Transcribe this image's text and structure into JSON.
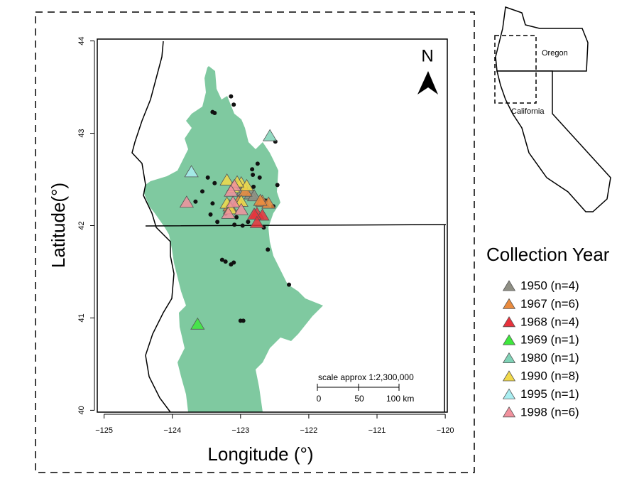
{
  "chart_data": {
    "type": "scatter",
    "xlabel": "Longitude (°)",
    "ylabel": "Latitude(°)",
    "xlim": [
      -125.1,
      -119.97
    ],
    "ylim": [
      39.98,
      44.02
    ],
    "xticks": [
      {
        "value": -125,
        "label": "−125"
      },
      {
        "value": -124,
        "label": "−124"
      },
      {
        "value": -123,
        "label": "−123"
      },
      {
        "value": -122,
        "label": "−122"
      },
      {
        "value": -121,
        "label": "−121"
      },
      {
        "value": -120,
        "label": "−120"
      }
    ],
    "yticks": [
      40,
      41,
      42,
      43,
      44
    ],
    "legend_title": "Collection Year",
    "north_label": "N",
    "scale_label": "scale approx 1:2,300,000",
    "scale_ticks": [
      "0",
      "50",
      "100 km"
    ],
    "inset_labels": [
      "Oregon",
      "California"
    ],
    "sites": {
      "color": "#111111",
      "x": [
        -123.14,
        -123.1,
        -123.41,
        -123.38,
        -122.49,
        -122.75,
        -122.83,
        -123.48,
        -123.38,
        -123.56,
        -123.66,
        -122.82,
        -122.46,
        -122.72,
        -123.44,
        -123.22,
        -123.34,
        -123.09,
        -122.97,
        -122.89,
        -122.66,
        -122.6,
        -123.27,
        -123.22,
        -123.14,
        -123.1,
        -123.0,
        -122.96,
        -122.29,
        -122.81,
        -123.41,
        -122.52,
        -123.06,
        -122.63
      ],
      "y": [
        43.4,
        43.31,
        43.23,
        43.22,
        42.91,
        42.67,
        42.61,
        42.52,
        42.46,
        42.37,
        42.26,
        42.55,
        42.44,
        42.52,
        42.12,
        42.13,
        42.04,
        42.01,
        42.0,
        42.04,
        41.98,
        41.74,
        41.63,
        41.61,
        41.58,
        41.6,
        40.97,
        40.97,
        41.36,
        42.42,
        42.24,
        42.21,
        42.09,
        42.27
      ]
    },
    "series": [
      {
        "name": "1950 (n=4)",
        "color": "#8f8f84",
        "x": [
          -122.96,
          -122.85,
          -122.8,
          -123.06
        ],
        "values": [
          42.38,
          42.34,
          42.32,
          42.43
        ]
      },
      {
        "name": "1967 (n=6)",
        "color": "#ea8b3e",
        "x": [
          -122.68,
          -122.59,
          -122.71,
          -123.03,
          -123.16,
          -122.93
        ],
        "values": [
          42.26,
          42.24,
          42.27,
          42.26,
          42.21,
          42.37
        ]
      },
      {
        "name": "1968 (n=4)",
        "color": "#e8323c",
        "x": [
          -122.76,
          -122.68,
          -122.8,
          -122.76
        ],
        "values": [
          42.13,
          42.11,
          42.12,
          42.03
        ]
      },
      {
        "name": "1969 (n=1)",
        "color": "#3ee83c",
        "x": [
          -123.63
        ],
        "values": [
          40.93
        ]
      },
      {
        "name": "1980 (n=1)",
        "color": "#7fd2b6",
        "x": [
          -122.57
        ],
        "values": [
          42.97
        ]
      },
      {
        "name": "1990 (n=8)",
        "color": "#f1d94a",
        "x": [
          -123.2,
          -122.99,
          -123.11,
          -123.2,
          -122.99,
          -123.15,
          -122.91,
          -123.05
        ],
        "values": [
          42.49,
          42.46,
          42.41,
          42.24,
          42.26,
          42.18,
          42.43,
          42.47
        ]
      },
      {
        "name": "1995 (n=1)",
        "color": "#a9eef1",
        "x": [
          -123.72
        ],
        "values": [
          42.58
        ]
      },
      {
        "name": "1998 (n=6)",
        "color": "#f1919d",
        "x": [
          -123.79,
          -123.09,
          -123.11,
          -123.18,
          -122.99,
          -123.14
        ],
        "values": [
          42.25,
          42.43,
          42.25,
          42.13,
          42.17,
          42.37
        ]
      }
    ]
  }
}
